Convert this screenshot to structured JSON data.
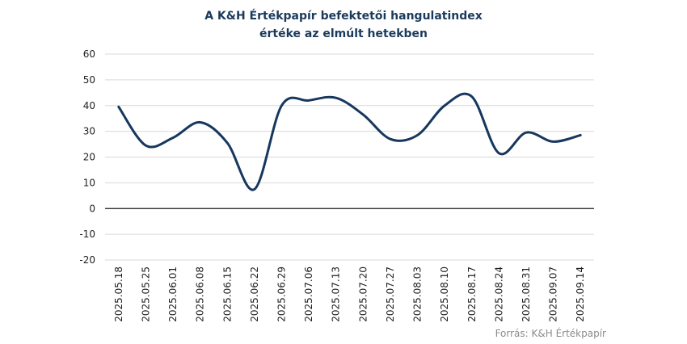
{
  "chart_data": {
    "type": "line",
    "title_line1": "A K&H Értékpapír befektetői hangulatindex",
    "title_line2": "értéke az elmúlt hetekben",
    "source": "Forrás: K&H Értékpapír",
    "categories": [
      "2025.05.18",
      "2025.05.25",
      "2025.06.01",
      "2025.06.08",
      "2025.06.15",
      "2025.06.22",
      "2025.06.29",
      "2025.07.06",
      "2025.07.13",
      "2025.07.20",
      "2025.07.27",
      "2025.08.03",
      "2025.08.10",
      "2025.08.17",
      "2025.08.24",
      "2025.08.31",
      "2025.09.07",
      "2025.09.14"
    ],
    "series": [
      {
        "values": [
          39.5,
          24.5,
          27.5,
          33.5,
          25.5,
          7.5,
          40,
          42,
          43,
          36.5,
          27,
          28.5,
          40,
          43.5,
          21.5,
          29.5,
          26,
          28.5
        ]
      }
    ],
    "yticks": [
      60,
      50,
      40,
      30,
      20,
      10,
      0,
      -10,
      -20
    ],
    "ylim": [
      -20,
      60
    ],
    "grid": true,
    "line_color": "#17375e"
  }
}
